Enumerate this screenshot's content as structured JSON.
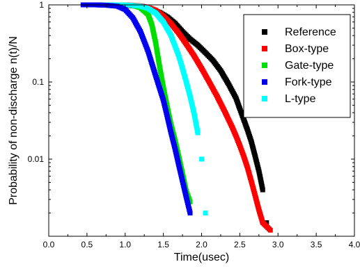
{
  "chart_data": {
    "type": "scatter",
    "xlabel": "Time(usec)",
    "ylabel": "Probability of non-discharge n(t)/N",
    "xlim": [
      0.0,
      4.0
    ],
    "ylim": [
      0.001,
      1.0
    ],
    "y_scale": "log",
    "x_ticks": [
      "0.0",
      "0.5",
      "1.0",
      "1.5",
      "2.0",
      "2.5",
      "3.0",
      "3.5",
      "4.0"
    ],
    "y_ticks": [
      "1",
      "0.1",
      "0.01"
    ],
    "grid": false,
    "legend_position": "top-right",
    "series": [
      {
        "name": "Reference",
        "color": "#000000",
        "x": [
          0.45,
          0.6,
          0.8,
          1.0,
          1.15,
          1.3,
          1.45,
          1.55,
          1.65,
          1.75,
          1.85,
          1.95,
          2.05,
          2.15,
          2.25,
          2.35,
          2.45,
          2.5,
          2.55,
          2.6,
          2.65,
          2.7,
          2.75,
          2.8,
          2.85
        ],
        "y": [
          1.0,
          1.0,
          1.0,
          0.99,
          0.96,
          0.9,
          0.8,
          0.7,
          0.58,
          0.45,
          0.36,
          0.3,
          0.24,
          0.19,
          0.14,
          0.095,
          0.062,
          0.045,
          0.033,
          0.024,
          0.017,
          0.011,
          0.007,
          0.004,
          0.0015
        ]
      },
      {
        "name": "Box-type",
        "color": "#ff0000",
        "x": [
          0.7,
          0.9,
          1.1,
          1.2,
          1.3,
          1.4,
          1.5,
          1.6,
          1.7,
          1.8,
          1.9,
          2.0,
          2.1,
          2.2,
          2.3,
          2.4,
          2.45,
          2.5,
          2.55,
          2.6,
          2.65,
          2.7,
          2.75,
          2.8,
          2.9
        ],
        "y": [
          1.0,
          1.0,
          0.99,
          0.97,
          0.93,
          0.85,
          0.72,
          0.57,
          0.43,
          0.31,
          0.22,
          0.15,
          0.1,
          0.066,
          0.042,
          0.026,
          0.02,
          0.015,
          0.011,
          0.0078,
          0.0052,
          0.0034,
          0.0022,
          0.0015,
          0.0012
        ]
      },
      {
        "name": "Gate-type",
        "color": "#00dd00",
        "x": [
          0.7,
          0.85,
          1.0,
          1.1,
          1.2,
          1.3,
          1.35,
          1.4,
          1.45,
          1.5,
          1.55,
          1.6,
          1.65,
          1.7,
          1.75,
          1.8,
          1.85
        ],
        "y": [
          1.0,
          1.0,
          1.0,
          0.98,
          0.92,
          0.75,
          0.55,
          0.32,
          0.16,
          0.085,
          0.048,
          0.028,
          0.018,
          0.011,
          0.0065,
          0.0038,
          0.0028
        ]
      },
      {
        "name": "Fork-type",
        "color": "#0000ee",
        "x": [
          0.45,
          0.6,
          0.75,
          0.9,
          1.0,
          1.1,
          1.2,
          1.3,
          1.4,
          1.5,
          1.55,
          1.6,
          1.65,
          1.7,
          1.75,
          1.8,
          1.85
        ],
        "y": [
          1.0,
          1.0,
          0.99,
          0.96,
          0.87,
          0.68,
          0.45,
          0.25,
          0.12,
          0.058,
          0.036,
          0.022,
          0.014,
          0.0085,
          0.0052,
          0.0032,
          0.002
        ]
      },
      {
        "name": "L-type",
        "color": "#00ffff",
        "x": [
          0.75,
          0.9,
          1.05,
          1.2,
          1.3,
          1.4,
          1.5,
          1.6,
          1.7,
          1.75,
          1.8,
          1.85,
          1.9,
          1.95,
          2.0,
          2.05
        ],
        "y": [
          1.0,
          1.0,
          0.99,
          0.96,
          0.9,
          0.78,
          0.6,
          0.4,
          0.22,
          0.15,
          0.1,
          0.065,
          0.04,
          0.022,
          0.01,
          0.002
        ]
      }
    ]
  }
}
